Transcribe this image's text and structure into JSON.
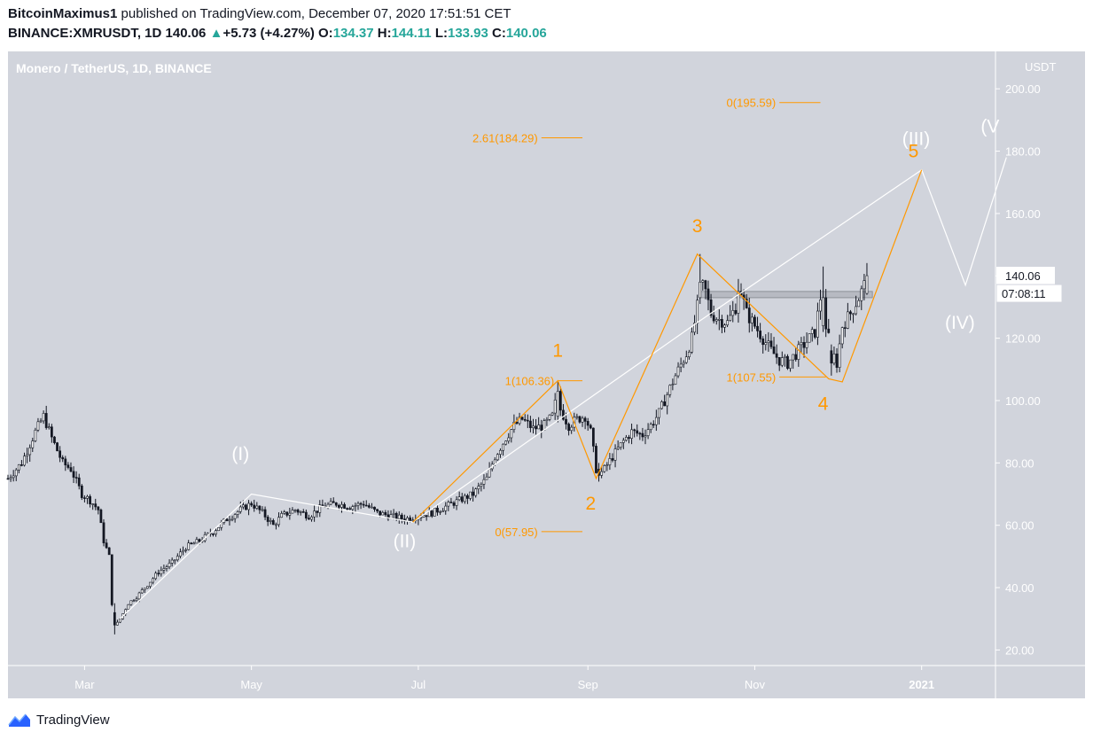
{
  "header": {
    "author": "BitcoinMaximus1",
    "published_text": "published on TradingView.com, December 07, 2020 17:51:51 CET",
    "symbol": "BINANCE:XMRUSDT, 1D",
    "last": "140.06",
    "change_arrow": "▲",
    "change": "+5.73 (+4.27%)",
    "o_label": "O:",
    "o_value": "134.37",
    "h_label": "H:",
    "h_value": "144.11",
    "l_label": "L:",
    "l_value": "133.93",
    "c_label": "C:",
    "c_value": "140.06"
  },
  "footer": {
    "brand": "TradingView",
    "logo_icon": "tradingview-logo-icon"
  },
  "chart_data": {
    "type": "candlestick",
    "title": "Monero / TetherUS, 1D, BINANCE",
    "ylabel": "USDT",
    "ylim": [
      15,
      212
    ],
    "y_ticks": [
      "200.00",
      "180.00",
      "160.00",
      "140.00",
      "120.00",
      "100.00",
      "80.00",
      "60.00",
      "40.00",
      "20.00"
    ],
    "x_ticks": [
      "Mar",
      "May",
      "Jul",
      "Sep",
      "Nov",
      "2021"
    ],
    "x_range_days": [
      0,
      361
    ],
    "x_tick_days": [
      28,
      89,
      150,
      212,
      273,
      334
    ],
    "last_price_label": "140.06",
    "countdown_label": "07:08:11",
    "colors": {
      "background": "#d1d4dc",
      "candle": "#131722",
      "wave_white": "#ffffff",
      "wave_orange": "#ff9800",
      "fib_line": "#ff9800"
    },
    "price_anchors": [
      [
        0,
        75
      ],
      [
        5,
        80
      ],
      [
        10,
        90
      ],
      [
        13,
        95
      ],
      [
        16,
        88
      ],
      [
        20,
        80
      ],
      [
        23,
        78
      ],
      [
        27,
        70
      ],
      [
        30,
        68
      ],
      [
        33,
        65
      ],
      [
        35,
        55
      ],
      [
        37,
        50
      ],
      [
        38,
        35
      ],
      [
        39,
        27
      ],
      [
        41,
        30
      ],
      [
        44,
        35
      ],
      [
        47,
        37
      ],
      [
        50,
        40
      ],
      [
        55,
        45
      ],
      [
        60,
        48
      ],
      [
        65,
        53
      ],
      [
        70,
        55
      ],
      [
        75,
        58
      ],
      [
        80,
        62
      ],
      [
        85,
        65
      ],
      [
        89,
        67
      ],
      [
        93,
        64
      ],
      [
        97,
        60
      ],
      [
        100,
        63
      ],
      [
        105,
        65
      ],
      [
        110,
        63
      ],
      [
        115,
        66
      ],
      [
        120,
        67
      ],
      [
        125,
        66
      ],
      [
        130,
        67
      ],
      [
        135,
        64
      ],
      [
        140,
        63
      ],
      [
        145,
        62
      ],
      [
        150,
        63
      ],
      [
        155,
        64
      ],
      [
        160,
        66
      ],
      [
        165,
        68
      ],
      [
        170,
        70
      ],
      [
        175,
        75
      ],
      [
        178,
        82
      ],
      [
        182,
        88
      ],
      [
        185,
        92
      ],
      [
        188,
        94
      ],
      [
        192,
        91
      ],
      [
        196,
        92
      ],
      [
        199,
        95
      ],
      [
        201,
        103
      ],
      [
        202,
        97
      ],
      [
        205,
        92
      ],
      [
        208,
        94
      ],
      [
        211,
        95
      ],
      [
        213,
        90
      ],
      [
        215,
        78
      ],
      [
        216,
        76
      ],
      [
        218,
        78
      ],
      [
        221,
        82
      ],
      [
        225,
        87
      ],
      [
        228,
        90
      ],
      [
        232,
        89
      ],
      [
        235,
        92
      ],
      [
        238,
        96
      ],
      [
        241,
        102
      ],
      [
        244,
        108
      ],
      [
        248,
        115
      ],
      [
        250,
        120
      ],
      [
        252,
        130
      ],
      [
        253,
        138
      ],
      [
        255,
        135
      ],
      [
        257,
        128
      ],
      [
        260,
        126
      ],
      [
        263,
        125
      ],
      [
        266,
        130
      ],
      [
        268,
        135
      ],
      [
        270,
        128
      ],
      [
        273,
        124
      ],
      [
        276,
        120
      ],
      [
        279,
        116
      ],
      [
        282,
        113
      ],
      [
        285,
        112
      ],
      [
        288,
        115
      ],
      [
        291,
        118
      ],
      [
        295,
        122
      ],
      [
        297,
        133
      ],
      [
        299,
        124
      ],
      [
        301,
        116
      ],
      [
        303,
        112
      ],
      [
        305,
        124
      ],
      [
        308,
        128
      ],
      [
        311,
        133
      ],
      [
        313,
        137
      ],
      [
        314,
        140
      ]
    ],
    "candles": [
      {
        "day": 39,
        "open": 32,
        "high": 35,
        "low": 25,
        "close": 28
      },
      {
        "day": 201,
        "open": 95,
        "high": 106,
        "low": 93,
        "close": 103
      },
      {
        "day": 216,
        "open": 78,
        "high": 80,
        "low": 74,
        "close": 76
      },
      {
        "day": 253,
        "open": 133,
        "high": 147,
        "low": 131,
        "close": 138
      },
      {
        "day": 267,
        "open": 128,
        "high": 139,
        "low": 125,
        "close": 135
      },
      {
        "day": 298,
        "open": 124,
        "high": 143,
        "low": 122,
        "close": 133
      },
      {
        "day": 301,
        "open": 116,
        "high": 118,
        "low": 108,
        "close": 112
      },
      {
        "day": 314,
        "open": 134.37,
        "high": 144.11,
        "low": 133.93,
        "close": 140.06
      }
    ],
    "resistance_zone": {
      "day_start": 253,
      "day_end": 316,
      "low": 133,
      "high": 135
    },
    "white_wave": [
      [
        41,
        30
      ],
      [
        89,
        70
      ],
      [
        148,
        61
      ],
      [
        252,
        125
      ],
      [
        334,
        174
      ],
      [
        350,
        137
      ],
      [
        365,
        178
      ]
    ],
    "orange_wave": [
      [
        148,
        61
      ],
      [
        201,
        106.36
      ],
      [
        215,
        75
      ],
      [
        252,
        147
      ],
      [
        300,
        107
      ],
      [
        305,
        106
      ],
      [
        334,
        174
      ]
    ],
    "labels": [
      {
        "text": "(I)",
        "day": 85,
        "price": 81,
        "color": "#ffffff"
      },
      {
        "text": "(II)",
        "day": 145,
        "price": 53,
        "color": "#ffffff"
      },
      {
        "text": "(III)",
        "day": 332,
        "price": 182,
        "color": "#ffffff"
      },
      {
        "text": "(IV)",
        "day": 348,
        "price": 123,
        "color": "#ffffff"
      },
      {
        "text": "(V",
        "day": 359,
        "price": 186,
        "color": "#ffffff"
      },
      {
        "text": "1",
        "day": 201,
        "price": 114,
        "color": "#ff9800"
      },
      {
        "text": "2",
        "day": 213,
        "price": 65,
        "color": "#ff9800"
      },
      {
        "text": "3",
        "day": 252,
        "price": 154,
        "color": "#ff9800"
      },
      {
        "text": "4",
        "day": 298,
        "price": 97,
        "color": "#ff9800"
      },
      {
        "text": "5",
        "day": 331,
        "price": 178,
        "color": "#ff9800"
      }
    ],
    "fib_levels": [
      {
        "label": "0(195.59)",
        "price": 195.59,
        "day_start": 282,
        "day_end": 297
      },
      {
        "label": "2.61(184.29)",
        "price": 184.29,
        "day_start": 195,
        "day_end": 210
      },
      {
        "label": "1(106.36)",
        "price": 106.36,
        "day_start": 201,
        "day_end": 210
      },
      {
        "label": "1(107.55)",
        "price": 107.55,
        "day_start": 282,
        "day_end": 299
      },
      {
        "label": "0(57.95)",
        "price": 57.95,
        "day_start": 195,
        "day_end": 210
      }
    ]
  }
}
